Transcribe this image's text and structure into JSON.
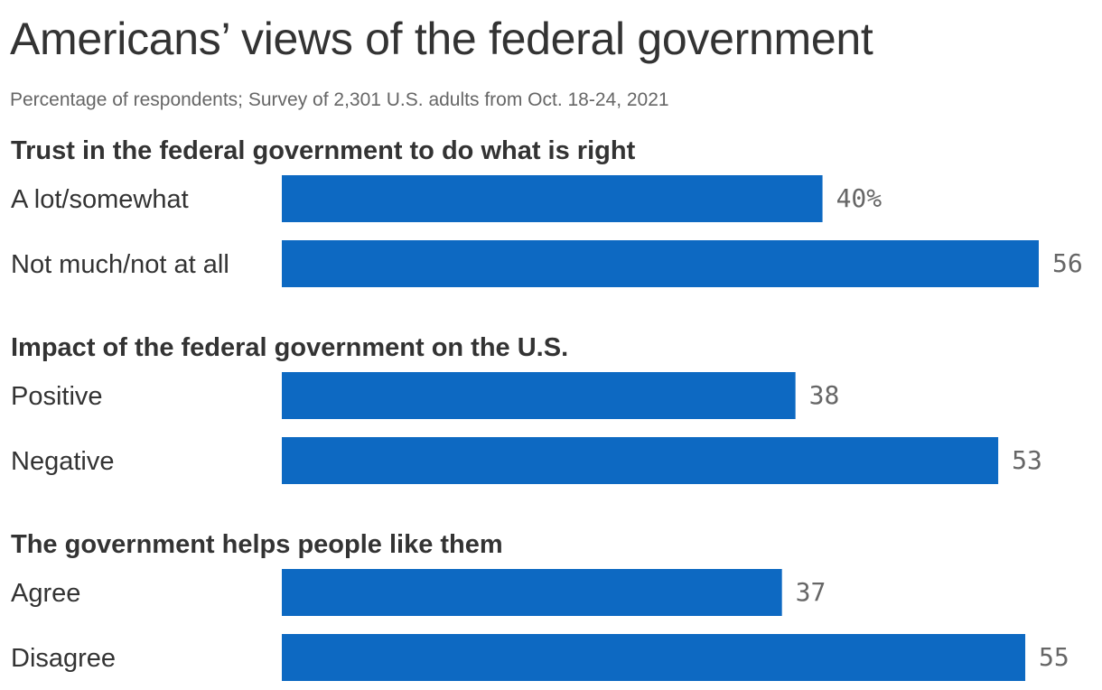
{
  "title": "Americans’ views of the federal government",
  "subtitle": "Percentage of respondents; Survey of 2,301 U.S. adults from Oct. 18-24, 2021",
  "colors": {
    "bar": "#0d69c2",
    "text": "#333333",
    "value_text": "#666666"
  },
  "chart_data": {
    "type": "bar",
    "orientation": "horizontal",
    "value_suffix_first": "%",
    "groups": [
      {
        "title": "Trust in the federal government to do what is right",
        "categories": [
          "A lot/somewhat",
          "Not much/not at all"
        ],
        "values": [
          40,
          56
        ],
        "labels": [
          "40%",
          "56"
        ]
      },
      {
        "title": "Impact of the federal government on the U.S.",
        "categories": [
          "Positive",
          "Negative"
        ],
        "values": [
          38,
          53
        ],
        "labels": [
          "38",
          "53"
        ]
      },
      {
        "title": "The government helps people like them",
        "categories": [
          "Agree",
          "Disagree"
        ],
        "values": [
          37,
          55
        ],
        "labels": [
          "37",
          "55"
        ]
      }
    ],
    "xlim": [
      0,
      56
    ],
    "grid": false,
    "legend": "none"
  }
}
